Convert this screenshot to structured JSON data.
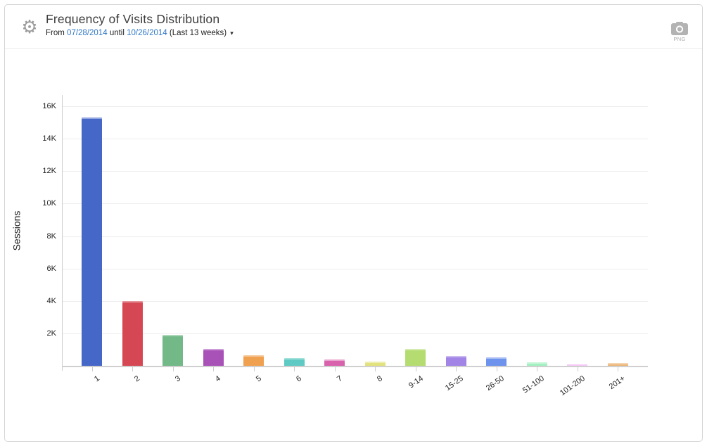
{
  "header": {
    "title": "Frequency of Visits Distribution",
    "subtitle_prefix": "From",
    "date_from": "07/28/2014",
    "subtitle_mid": "until",
    "date_to": "10/26/2014",
    "subtitle_suffix": "(Last 13 weeks)",
    "dropdown_caret": "▾",
    "gear_glyph": "⚙",
    "export_label": "PNG"
  },
  "chart_data": {
    "type": "bar",
    "title": "Frequency of Visits Distribution",
    "xlabel": "",
    "ylabel": "Sessions",
    "categories": [
      "1",
      "2",
      "3",
      "4",
      "5",
      "6",
      "7",
      "8",
      "9-14",
      "15-25",
      "26-50",
      "51-100",
      "101-200",
      "201+"
    ],
    "values": [
      15300,
      4000,
      1900,
      1030,
      640,
      470,
      370,
      250,
      1050,
      600,
      520,
      210,
      90,
      160
    ],
    "colors": [
      "#4567c8",
      "#d54853",
      "#72b987",
      "#a852b8",
      "#f0a150",
      "#5fcac3",
      "#d863ac",
      "#e2e27e",
      "#b4dc71",
      "#a184e5",
      "#6e93ed",
      "#a3f0c0",
      "#eca3ee",
      "#ecb577"
    ],
    "y_tick_labels": [
      "2K",
      "4K",
      "6K",
      "8K",
      "10K",
      "12K",
      "14K",
      "16K"
    ],
    "y_tick_values": [
      2000,
      4000,
      6000,
      8000,
      10000,
      12000,
      14000,
      16000
    ],
    "ylim": [
      0,
      16700
    ],
    "grid": true,
    "legend": false
  }
}
